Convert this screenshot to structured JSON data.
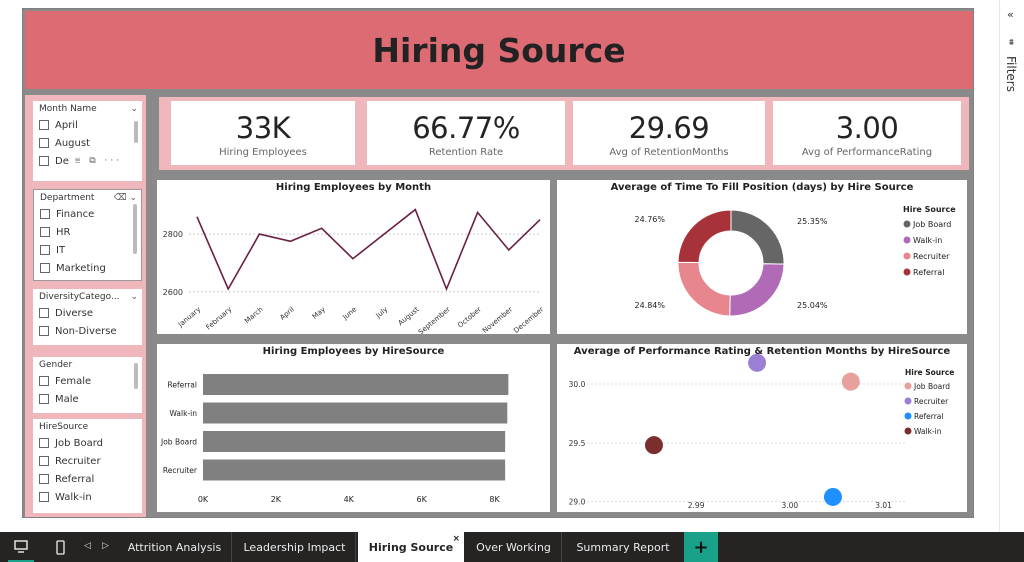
{
  "banner": {
    "title": "Hiring Source"
  },
  "kpis": [
    {
      "value": "33K",
      "label": "Hiring Employees"
    },
    {
      "value": "66.77%",
      "label": "Retention Rate"
    },
    {
      "value": "29.69",
      "label": "Avg of RetentionMonths"
    },
    {
      "value": "3.00",
      "label": "Avg of PerformanceRating"
    }
  ],
  "slicers": {
    "month": {
      "title": "Month Name",
      "options": [
        "April",
        "August",
        "De"
      ]
    },
    "department": {
      "title": "Department",
      "options": [
        "Finance",
        "HR",
        "IT",
        "Marketing"
      ]
    },
    "diversity": {
      "title": "DiversityCatego...",
      "options": [
        "Diverse",
        "Non-Diverse"
      ]
    },
    "gender": {
      "title": "Gender",
      "options": [
        "Female",
        "Male"
      ]
    },
    "hiresource": {
      "title": "HireSource",
      "options": [
        "Job Board",
        "Recruiter",
        "Referral",
        "Walk-in"
      ]
    }
  },
  "page_tabs": [
    "Attrition Analysis",
    "Leadership Impact",
    "Hiring Source",
    "Over Working",
    "Summary Report"
  ],
  "active_tab": "Hiring Source",
  "filters_label": "Filters",
  "colors": {
    "banner": "#dc6b74",
    "panel_bg": "#efb6bc",
    "line": "#6b1f45",
    "bar": "#808080",
    "job_board": "#666666",
    "walk_in": "#b06ab6",
    "recruiter": "#e8868e",
    "referral": "#a8323a",
    "accent_tab": "#1aa189"
  },
  "chart_data": [
    {
      "type": "line",
      "title": "Hiring Employees by Month",
      "categories": [
        "January",
        "February",
        "March",
        "April",
        "May",
        "June",
        "July",
        "August",
        "September",
        "October",
        "November",
        "December"
      ],
      "values": [
        2860,
        2610,
        2800,
        2775,
        2820,
        2715,
        2800,
        2885,
        2610,
        2875,
        2745,
        2850
      ],
      "ylim": [
        2565,
        2925
      ],
      "yticks": [
        {
          "value": 2800,
          "label": "2800"
        },
        {
          "value": 2600,
          "label": "2600"
        }
      ],
      "grid": true
    },
    {
      "type": "pie",
      "title": "Average of Time To Fill Position (days) by Hire Source",
      "legend_title": "Hire Source",
      "legend_position": "right",
      "slices": [
        {
          "name": "Job Board",
          "value": 25.35,
          "label": "25.35%",
          "color": "#666666"
        },
        {
          "name": "Walk-in",
          "value": 25.04,
          "label": "25.04%",
          "color": "#b06ab6"
        },
        {
          "name": "Recruiter",
          "value": 24.84,
          "label": "24.84%",
          "color": "#e8868e"
        },
        {
          "name": "Referral",
          "value": 24.76,
          "label": "24.76%",
          "color": "#a8323a"
        }
      ]
    },
    {
      "type": "bar",
      "orientation": "horizontal",
      "title": "Hiring Employees by HireSource",
      "categories": [
        "Referral",
        "Walk-in",
        "Job Board",
        "Recruiter"
      ],
      "values": [
        8380,
        8350,
        8290,
        8290
      ],
      "xlim": [
        0,
        9000
      ],
      "xticks": [
        "0K",
        "2K",
        "4K",
        "6K",
        "8K"
      ],
      "xtick_values": [
        0,
        2000,
        4000,
        6000,
        8000
      ]
    },
    {
      "type": "scatter",
      "title": "Average of Performance Rating & Retention Months by HireSource",
      "legend_title": "Hire Source",
      "legend_position": "right",
      "xlim": [
        2.9775,
        3.0125
      ],
      "ylim": [
        28.98,
        30.17
      ],
      "xticks": [
        {
          "value": 2.99,
          "label": "2.99"
        },
        {
          "value": 3.0,
          "label": "3.00"
        },
        {
          "value": 3.01,
          "label": "3.01"
        }
      ],
      "yticks": [
        {
          "value": 30.0,
          "label": "30.0"
        },
        {
          "value": 29.5,
          "label": "29.5"
        },
        {
          "value": 29.0,
          "label": "29.0"
        }
      ],
      "points": [
        {
          "name": "Job Board",
          "x": 3.0065,
          "y": 30.02,
          "color": "#e8a09c"
        },
        {
          "name": "Recruiter",
          "x": 2.9965,
          "y": 30.18,
          "color": "#9b7fd4"
        },
        {
          "name": "Referral",
          "x": 3.0046,
          "y": 29.04,
          "color": "#1e90ff"
        },
        {
          "name": "Walk-in",
          "x": 2.9855,
          "y": 29.48,
          "color": "#7a2e2e"
        }
      ]
    }
  ]
}
